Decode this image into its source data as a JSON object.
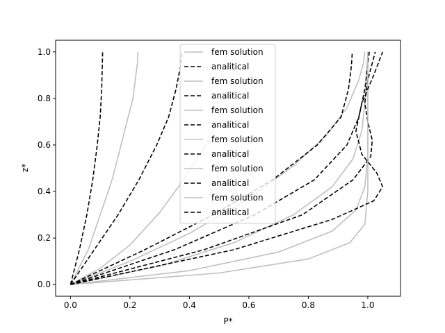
{
  "chart_data": {
    "type": "line",
    "title": "",
    "xlabel": "P*",
    "ylabel": "z*",
    "xlim": [
      -0.05,
      1.11
    ],
    "ylim": [
      -0.05,
      1.05
    ],
    "xticks": [
      "0.0",
      "0.2",
      "0.4",
      "0.6",
      "0.8",
      "1.0"
    ],
    "xtick_values": [
      0.0,
      0.2,
      0.4,
      0.6,
      0.8,
      1.0
    ],
    "yticks": [
      "0.0",
      "0.2",
      "0.4",
      "0.6",
      "0.8",
      "1.0"
    ],
    "ytick_values": [
      0.0,
      0.2,
      0.4,
      0.6,
      0.8,
      1.0
    ],
    "legend_location": "upper center",
    "colors": {
      "fem": "#bfbfbf",
      "analytical": "#000000"
    },
    "series": [
      {
        "name": "fem solution",
        "style": "solid",
        "x": [
          0,
          0.06,
          0.1,
          0.14,
          0.17,
          0.19,
          0.21,
          0.22,
          0.225,
          0.227
        ],
        "y": [
          0,
          0.15,
          0.3,
          0.45,
          0.6,
          0.7,
          0.8,
          0.9,
          0.95,
          1.0
        ]
      },
      {
        "name": "analitical",
        "style": "dashed",
        "x": [
          0,
          0.03,
          0.055,
          0.075,
          0.09,
          0.1,
          0.105,
          0.107,
          0.108
        ],
        "y": [
          0,
          0.15,
          0.3,
          0.45,
          0.6,
          0.72,
          0.84,
          0.94,
          1.0
        ]
      },
      {
        "name": "fem solution",
        "style": "solid",
        "x": [
          0,
          0.1,
          0.2,
          0.3,
          0.38,
          0.44,
          0.48,
          0.5
        ],
        "y": [
          0,
          0.07,
          0.17,
          0.31,
          0.45,
          0.57,
          0.66,
          0.7
        ]
      },
      {
        "name": "analitical",
        "style": "dashed",
        "x": [
          0,
          0.08,
          0.16,
          0.23,
          0.29,
          0.33,
          0.355,
          0.37,
          0.375
        ],
        "y": [
          0,
          0.15,
          0.3,
          0.45,
          0.6,
          0.72,
          0.84,
          0.94,
          1.0
        ]
      },
      {
        "name": "fem solution",
        "style": "solid",
        "x": [
          0,
          0.2,
          0.4,
          0.6,
          0.75,
          0.86,
          0.93,
          0.97,
          0.985,
          0.99
        ],
        "y": [
          0,
          0.1,
          0.22,
          0.37,
          0.51,
          0.64,
          0.76,
          0.88,
          0.95,
          1.0
        ]
      },
      {
        "name": "analitical",
        "style": "dashed",
        "x": [
          0,
          0.25,
          0.48,
          0.68,
          0.83,
          0.91,
          0.935,
          0.945,
          0.948
        ],
        "y": [
          0,
          0.15,
          0.3,
          0.45,
          0.6,
          0.72,
          0.84,
          0.94,
          1.0
        ]
      },
      {
        "name": "fem solution",
        "style": "solid",
        "x": [
          0,
          0.3,
          0.55,
          0.75,
          0.88,
          0.95,
          0.98,
          0.99,
          0.995,
          1.0
        ],
        "y": [
          0,
          0.08,
          0.18,
          0.3,
          0.42,
          0.54,
          0.66,
          0.78,
          0.9,
          1.0
        ]
      },
      {
        "name": "analitical",
        "style": "dashed",
        "x": [
          0,
          0.35,
          0.62,
          0.82,
          0.93,
          0.97,
          0.99,
          1.0,
          1.005
        ],
        "y": [
          0,
          0.15,
          0.3,
          0.45,
          0.6,
          0.72,
          0.84,
          0.94,
          1.0
        ]
      },
      {
        "name": "fem solution",
        "style": "solid",
        "x": [
          0,
          0.4,
          0.7,
          0.88,
          0.96,
          0.99,
          1.0,
          1.0,
          1.0,
          1.0
        ],
        "y": [
          0,
          0.06,
          0.14,
          0.23,
          0.32,
          0.42,
          0.55,
          0.7,
          0.85,
          1.0
        ]
      },
      {
        "name": "analitical",
        "style": "dashed",
        "x": [
          0,
          0.45,
          0.78,
          0.95,
          1.01,
          1.015,
          1.0,
          0.99,
          1.0,
          1.025
        ],
        "y": [
          0,
          0.15,
          0.3,
          0.45,
          0.55,
          0.62,
          0.7,
          0.78,
          0.88,
          1.0
        ]
      },
      {
        "name": "fem solution",
        "style": "solid",
        "x": [
          0,
          0.5,
          0.8,
          0.94,
          0.99,
          1.0,
          1.0,
          1.0,
          1.0
        ],
        "y": [
          0,
          0.05,
          0.11,
          0.18,
          0.26,
          0.4,
          0.6,
          0.8,
          1.0
        ]
      },
      {
        "name": "analitical",
        "style": "dashed",
        "x": [
          0,
          0.55,
          0.88,
          1.02,
          1.05,
          1.03,
          0.98,
          0.96,
          0.98,
          1.02,
          1.05
        ],
        "y": [
          0,
          0.15,
          0.28,
          0.36,
          0.42,
          0.48,
          0.56,
          0.66,
          0.78,
          0.9,
          1.0
        ]
      }
    ]
  }
}
